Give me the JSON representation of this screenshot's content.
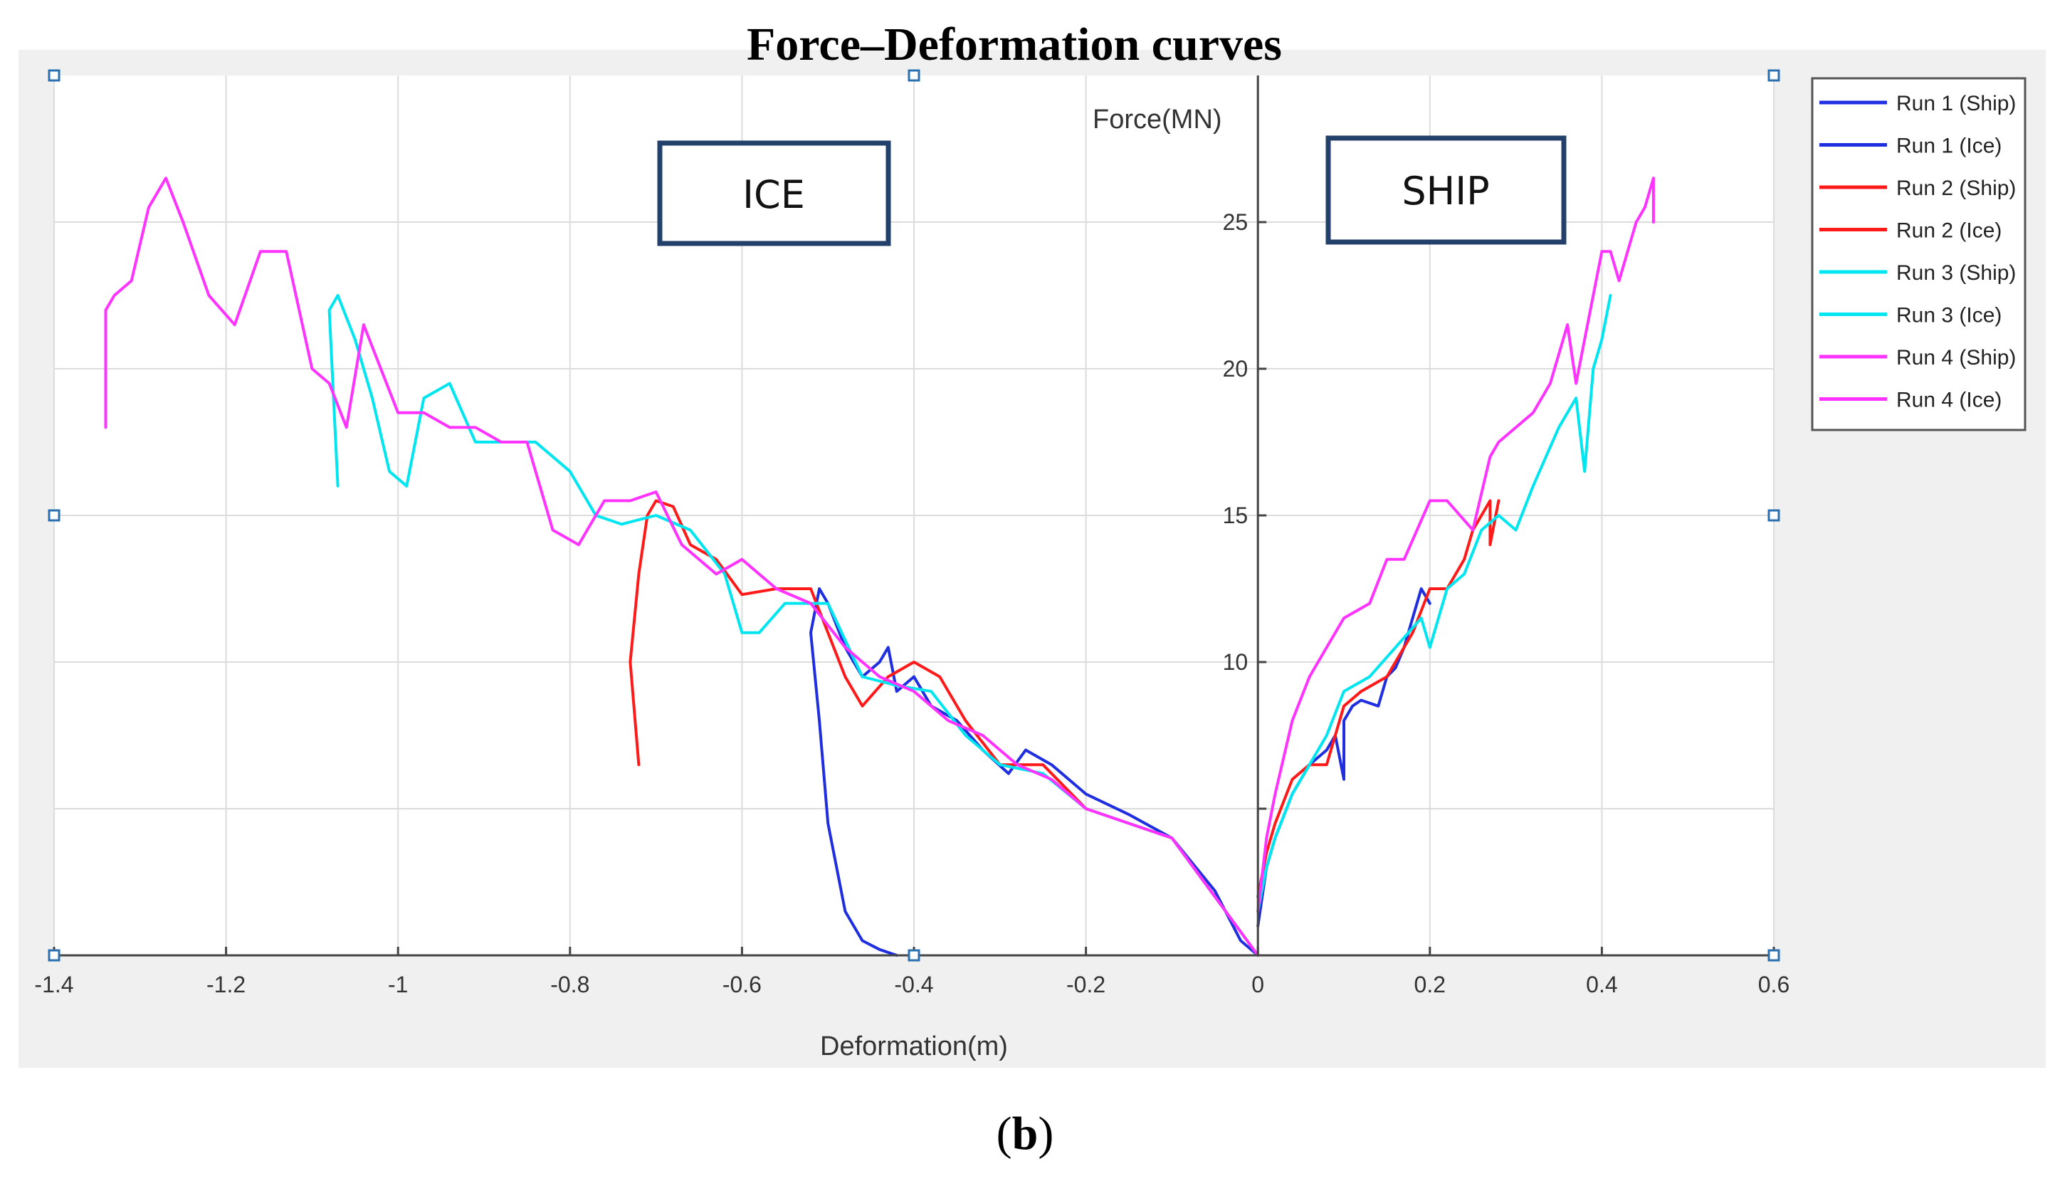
{
  "chart_data": {
    "type": "line",
    "title": "Force–Deformation curves",
    "xlabel": "Deformation(m)",
    "ylabel": "Force(MN)",
    "xlim": [
      -1.4,
      0.6
    ],
    "ylim": [
      0,
      30
    ],
    "x_ticks": [
      -1.4,
      -1.2,
      -1,
      -0.8,
      -0.6,
      -0.4,
      -0.2,
      0,
      0.2,
      0.4,
      0.6
    ],
    "x_tick_labels": [
      "-1.4",
      "-1.2",
      "-1",
      "-0.8",
      "-0.6",
      "-0.4",
      "-0.2",
      "0",
      "0.2",
      "0.4",
      "0.6"
    ],
    "y_ticks": [
      5,
      10,
      15,
      20,
      25
    ],
    "y_tick_labels": [
      "",
      "10",
      "15",
      "20",
      "25"
    ],
    "grid": true,
    "legend_position": "top-right",
    "annotations": [
      "ICE",
      "SHIP"
    ],
    "series": [
      {
        "name": "Run 1 (Ship)",
        "color": "#1f2fe0",
        "x": [
          0,
          0.01,
          0.02,
          0.04,
          0.06,
          0.08,
          0.09,
          0.1,
          0.1,
          0.11,
          0.12,
          0.14,
          0.15,
          0.16,
          0.17,
          0.18,
          0.19,
          0.2
        ],
        "y": [
          1,
          3,
          4,
          5.5,
          6.5,
          7,
          7.5,
          6,
          8,
          8.5,
          8.7,
          8.5,
          9.5,
          9.8,
          10.5,
          11.5,
          12.5,
          12
        ]
      },
      {
        "name": "Run 1 (Ice)",
        "color": "#1f2fe0",
        "x": [
          -0.42,
          -0.44,
          -0.46,
          -0.48,
          -0.5,
          -0.51,
          -0.52,
          -0.51,
          -0.5,
          -0.48,
          -0.46,
          -0.44,
          -0.43,
          -0.42,
          -0.4,
          -0.38,
          -0.35,
          -0.32,
          -0.29,
          -0.27,
          -0.24,
          -0.2,
          -0.15,
          -0.1,
          -0.05,
          -0.02,
          0
        ],
        "y": [
          0,
          0.2,
          0.5,
          1.5,
          4.5,
          8,
          11,
          12.5,
          12,
          10.5,
          9.5,
          10,
          10.5,
          9,
          9.5,
          8.5,
          8,
          7,
          6.2,
          7,
          6.5,
          5.5,
          4.8,
          4,
          2.2,
          0.5,
          0
        ]
      },
      {
        "name": "Run 2 (Ship)",
        "color": "#ff1a1a",
        "x": [
          0,
          0.01,
          0.02,
          0.04,
          0.06,
          0.08,
          0.1,
          0.12,
          0.15,
          0.18,
          0.2,
          0.22,
          0.24,
          0.25,
          0.26,
          0.27,
          0.27,
          0.28
        ],
        "y": [
          2,
          3.5,
          4.5,
          6,
          6.5,
          6.5,
          8.5,
          9,
          9.5,
          11,
          12.5,
          12.5,
          13.5,
          14.5,
          15,
          15.5,
          14,
          15.5
        ]
      },
      {
        "name": "Run 2 (Ice)",
        "color": "#ff1a1a",
        "x": [
          -0.72,
          -0.73,
          -0.72,
          -0.71,
          -0.7,
          -0.68,
          -0.66,
          -0.63,
          -0.6,
          -0.56,
          -0.52,
          -0.5,
          -0.48,
          -0.46,
          -0.43,
          -0.4,
          -0.37,
          -0.34,
          -0.3,
          -0.25,
          -0.2,
          -0.15,
          -0.1,
          -0.05,
          0
        ],
        "y": [
          6.5,
          10,
          13,
          15,
          15.5,
          15.3,
          14,
          13.5,
          12.3,
          12.5,
          12.5,
          11,
          9.5,
          8.5,
          9.5,
          10,
          9.5,
          8,
          6.5,
          6.5,
          5,
          4.5,
          4,
          2,
          0
        ]
      },
      {
        "name": "Run 3 (Ship)",
        "color": "#00e6f0",
        "x": [
          0,
          0.01,
          0.02,
          0.04,
          0.06,
          0.08,
          0.1,
          0.13,
          0.16,
          0.19,
          0.2,
          0.22,
          0.24,
          0.26,
          0.28,
          0.3,
          0.32,
          0.35,
          0.37,
          0.38,
          0.39,
          0.4,
          0.41
        ],
        "y": [
          1.5,
          3,
          4,
          5.5,
          6.5,
          7.5,
          9,
          9.5,
          10.5,
          11.5,
          10.5,
          12.5,
          13,
          14.5,
          15,
          14.5,
          16,
          18,
          19,
          16.5,
          20,
          21,
          22.5
        ]
      },
      {
        "name": "Run 3 (Ice)",
        "color": "#00e6f0",
        "x": [
          -1.07,
          -1.08,
          -1.07,
          -1.05,
          -1.03,
          -1.01,
          -0.99,
          -0.97,
          -0.94,
          -0.91,
          -0.88,
          -0.84,
          -0.8,
          -0.77,
          -0.74,
          -0.7,
          -0.66,
          -0.62,
          -0.6,
          -0.58,
          -0.55,
          -0.5,
          -0.46,
          -0.42,
          -0.38,
          -0.34,
          -0.3,
          -0.25,
          -0.2,
          -0.15,
          -0.1,
          -0.05,
          0
        ],
        "y": [
          16,
          22,
          22.5,
          21,
          19,
          16.5,
          16,
          19,
          19.5,
          17.5,
          17.5,
          17.5,
          16.5,
          15,
          14.7,
          15,
          14.5,
          13,
          11,
          11,
          12,
          12,
          9.5,
          9.2,
          9,
          7.5,
          6.5,
          6.2,
          5,
          4.5,
          4,
          2,
          0
        ]
      },
      {
        "name": "Run 4 (Ship)",
        "color": "#ff33ff",
        "x": [
          0,
          0.01,
          0.02,
          0.04,
          0.06,
          0.08,
          0.1,
          0.13,
          0.15,
          0.17,
          0.2,
          0.22,
          0.25,
          0.27,
          0.28,
          0.3,
          0.32,
          0.34,
          0.36,
          0.37,
          0.38,
          0.39,
          0.4,
          0.41,
          0.42,
          0.44,
          0.45,
          0.46,
          0.46
        ],
        "y": [
          1.5,
          4,
          5.5,
          8,
          9.5,
          10.5,
          11.5,
          12,
          13.5,
          13.5,
          15.5,
          15.5,
          14.5,
          17,
          17.5,
          18,
          18.5,
          19.5,
          21.5,
          19.5,
          21,
          22.5,
          24,
          24,
          23,
          25,
          25.5,
          26.5,
          25
        ]
      },
      {
        "name": "Run 4 (Ice)",
        "color": "#ff33ff",
        "x": [
          -1.34,
          -1.34,
          -1.33,
          -1.31,
          -1.29,
          -1.27,
          -1.25,
          -1.22,
          -1.19,
          -1.16,
          -1.13,
          -1.1,
          -1.08,
          -1.06,
          -1.04,
          -1.02,
          -1,
          -0.97,
          -0.94,
          -0.91,
          -0.88,
          -0.85,
          -0.82,
          -0.79,
          -0.76,
          -0.73,
          -0.7,
          -0.67,
          -0.63,
          -0.6,
          -0.56,
          -0.52,
          -0.48,
          -0.44,
          -0.4,
          -0.36,
          -0.32,
          -0.28,
          -0.24,
          -0.2,
          -0.15,
          -0.1,
          -0.05,
          0
        ],
        "y": [
          18,
          22,
          22.5,
          23,
          25.5,
          26.5,
          25,
          22.5,
          21.5,
          24,
          24,
          20,
          19.5,
          18,
          21.5,
          20,
          18.5,
          18.5,
          18,
          18,
          17.5,
          17.5,
          14.5,
          14,
          15.5,
          15.5,
          15.8,
          14,
          13,
          13.5,
          12.5,
          12,
          10.5,
          9.5,
          9,
          8,
          7.5,
          6.5,
          6,
          5,
          4.5,
          4,
          2,
          0
        ]
      }
    ]
  },
  "caption": {
    "label": "b",
    "open": "(",
    "close": ")"
  }
}
